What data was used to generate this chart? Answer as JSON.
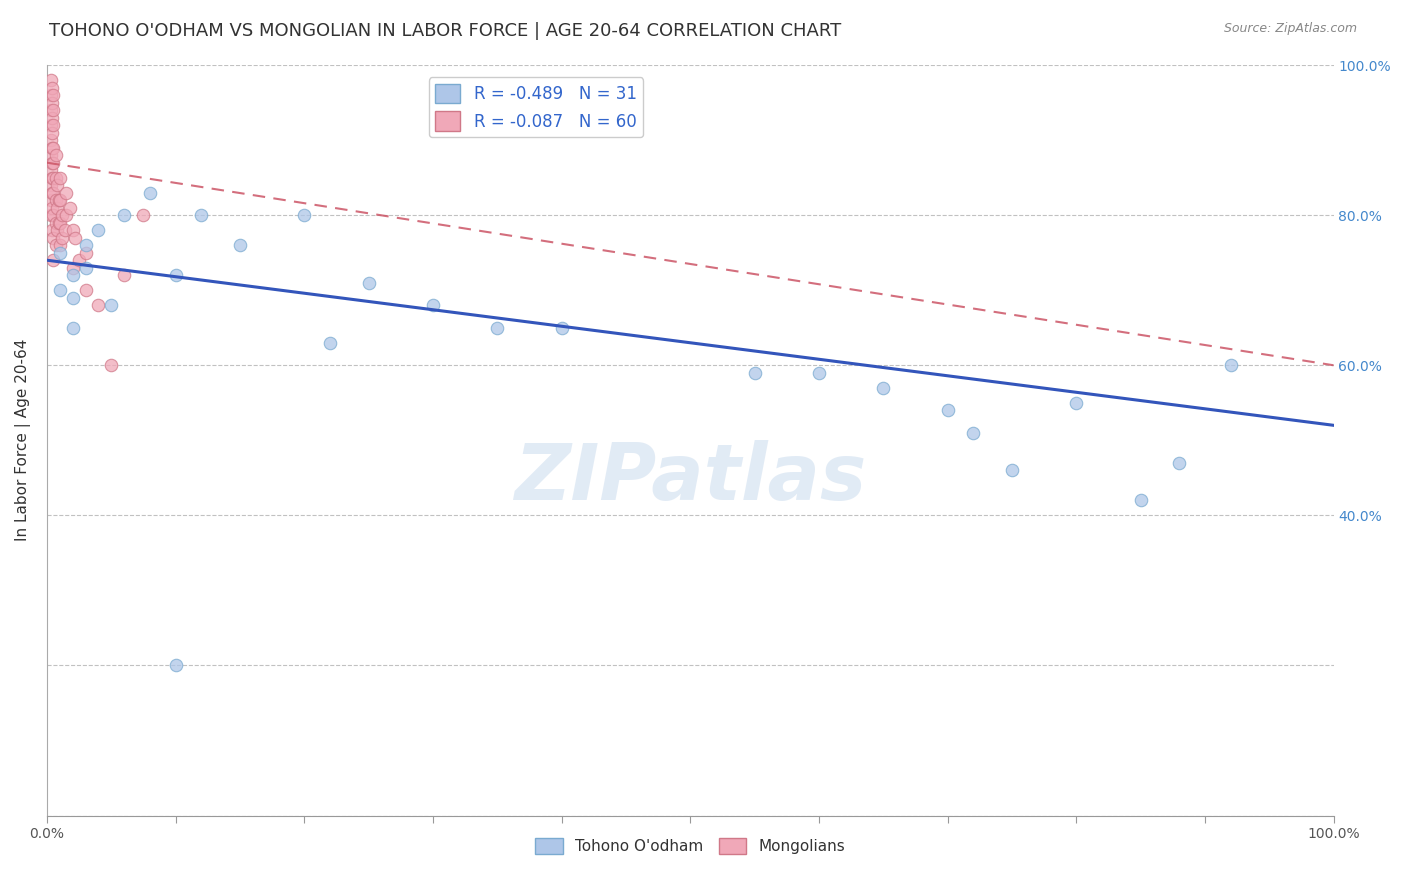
{
  "title": "TOHONO O'ODHAM VS MONGOLIAN IN LABOR FORCE | AGE 20-64 CORRELATION CHART",
  "source": "Source: ZipAtlas.com",
  "ylabel": "In Labor Force | Age 20-64",
  "xlim": [
    0.0,
    1.0
  ],
  "ylim": [
    0.0,
    1.0
  ],
  "watermark": "ZIPatlas",
  "legend_blue_label": "Tohono O'odham",
  "legend_pink_label": "Mongolians",
  "blue_R": -0.489,
  "blue_N": 31,
  "pink_R": -0.087,
  "pink_N": 60,
  "blue_color": "#aec6e8",
  "blue_edge": "#7aaad0",
  "pink_color": "#f0a8b8",
  "pink_edge": "#d07888",
  "blue_line_color": "#3355bb",
  "pink_line_color": "#cc5566",
  "grid_color": "#bbbbbb",
  "background_color": "#ffffff",
  "blue_scatter_x": [
    0.01,
    0.01,
    0.02,
    0.02,
    0.02,
    0.03,
    0.03,
    0.04,
    0.05,
    0.06,
    0.08,
    0.1,
    0.12,
    0.15,
    0.2,
    0.22,
    0.25,
    0.3,
    0.35,
    0.4,
    0.55,
    0.6,
    0.65,
    0.7,
    0.72,
    0.75,
    0.8,
    0.85,
    0.88,
    0.92,
    0.1
  ],
  "blue_scatter_y": [
    0.75,
    0.7,
    0.72,
    0.69,
    0.65,
    0.76,
    0.73,
    0.78,
    0.68,
    0.8,
    0.83,
    0.72,
    0.8,
    0.76,
    0.8,
    0.63,
    0.71,
    0.68,
    0.65,
    0.65,
    0.59,
    0.59,
    0.57,
    0.54,
    0.51,
    0.46,
    0.55,
    0.42,
    0.47,
    0.6,
    0.2
  ],
  "pink_scatter_x": [
    0.003,
    0.003,
    0.003,
    0.003,
    0.003,
    0.003,
    0.003,
    0.003,
    0.003,
    0.003,
    0.004,
    0.004,
    0.004,
    0.004,
    0.004,
    0.004,
    0.004,
    0.004,
    0.004,
    0.004,
    0.005,
    0.005,
    0.005,
    0.005,
    0.005,
    0.005,
    0.005,
    0.005,
    0.005,
    0.005,
    0.007,
    0.007,
    0.007,
    0.007,
    0.007,
    0.008,
    0.008,
    0.008,
    0.009,
    0.009,
    0.01,
    0.01,
    0.01,
    0.01,
    0.012,
    0.012,
    0.014,
    0.015,
    0.015,
    0.018,
    0.02,
    0.02,
    0.022,
    0.025,
    0.03,
    0.03,
    0.04,
    0.05,
    0.06,
    0.075
  ],
  "pink_scatter_y": [
    0.98,
    0.96,
    0.94,
    0.92,
    0.9,
    0.88,
    0.86,
    0.84,
    0.82,
    0.8,
    0.97,
    0.95,
    0.93,
    0.91,
    0.89,
    0.87,
    0.85,
    0.83,
    0.81,
    0.78,
    0.96,
    0.94,
    0.92,
    0.89,
    0.87,
    0.85,
    0.83,
    0.8,
    0.77,
    0.74,
    0.88,
    0.85,
    0.82,
    0.79,
    0.76,
    0.84,
    0.81,
    0.78,
    0.82,
    0.79,
    0.85,
    0.82,
    0.79,
    0.76,
    0.8,
    0.77,
    0.78,
    0.83,
    0.8,
    0.81,
    0.78,
    0.73,
    0.77,
    0.74,
    0.75,
    0.7,
    0.68,
    0.6,
    0.72,
    0.8
  ],
  "blue_line_x0": 0.0,
  "blue_line_y0": 0.74,
  "blue_line_x1": 1.0,
  "blue_line_y1": 0.52,
  "pink_line_x0": 0.0,
  "pink_line_y0": 0.87,
  "pink_line_x1": 1.0,
  "pink_line_y1": 0.6,
  "title_fontsize": 13,
  "axis_label_fontsize": 11,
  "tick_fontsize": 10,
  "legend_fontsize": 11,
  "marker_size": 9
}
